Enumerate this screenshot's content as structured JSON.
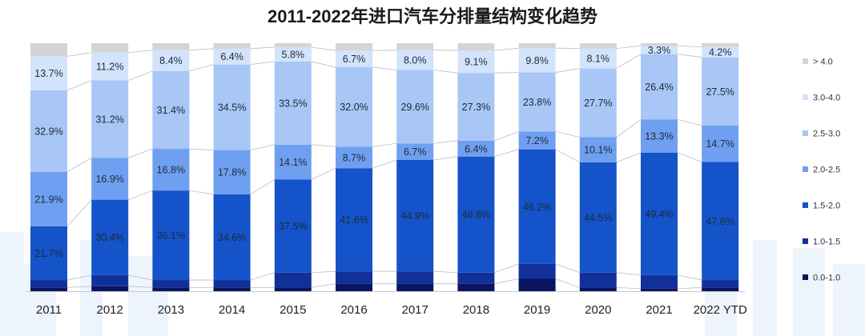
{
  "chart_data": {
    "type": "bar",
    "stacked": true,
    "normalized": true,
    "title": "2011-2022年进口汽车分排量结构变化趋势",
    "categories": [
      "2011",
      "2012",
      "2013",
      "2014",
      "2015",
      "2016",
      "2017",
      "2018",
      "2019",
      "2020",
      "2021",
      "2022 YTD"
    ],
    "ylim": [
      0,
      100
    ],
    "legend_position": "right",
    "series": [
      {
        "name": "0.0-1.0",
        "color": "#0a1560",
        "values": [
          1.5,
          2.0,
          1.5,
          1.5,
          1.5,
          3.0,
          3.0,
          3.0,
          5.0,
          1.5,
          1.0,
          1.5
        ],
        "labels": [
          null,
          null,
          null,
          null,
          null,
          null,
          null,
          null,
          null,
          null,
          null,
          null
        ]
      },
      {
        "name": "1.0-1.5",
        "color": "#12309a",
        "values": [
          3.0,
          4.5,
          3.0,
          3.0,
          6.0,
          5.0,
          5.0,
          4.5,
          6.0,
          6.0,
          5.5,
          3.0
        ],
        "labels": [
          null,
          null,
          null,
          null,
          null,
          null,
          null,
          null,
          null,
          null,
          null,
          null
        ]
      },
      {
        "name": "1.5-2.0",
        "color": "#1453c9",
        "values": [
          21.7,
          30.4,
          36.1,
          34.6,
          37.5,
          41.6,
          44.9,
          46.8,
          46.2,
          44.5,
          49.4,
          47.6
        ],
        "labels": [
          "21.7%",
          "30.4%",
          "36.1%",
          "34.6%",
          "37.5%",
          "41.6%",
          "44.9%",
          "46.8%",
          "46.2%",
          "44.5%",
          "49.4%",
          "47.6%"
        ]
      },
      {
        "name": "2.0-2.5",
        "color": "#6f9ff0",
        "values": [
          21.9,
          16.9,
          16.8,
          17.8,
          14.1,
          8.7,
          6.7,
          6.4,
          7.2,
          10.1,
          13.3,
          14.7
        ],
        "labels": [
          "21.9%",
          "16.9%",
          "16.8%",
          "17.8%",
          "14.1%",
          "8.7%",
          "6.7%",
          "6.4%",
          "7.2%",
          "10.1%",
          "13.3%",
          "14.7%"
        ]
      },
      {
        "name": "2.5-3.0",
        "color": "#a8c6f6",
        "values": [
          32.9,
          31.2,
          31.4,
          34.5,
          33.5,
          32.0,
          29.6,
          27.3,
          23.8,
          27.7,
          26.4,
          27.5
        ],
        "labels": [
          "32.9%",
          "31.2%",
          "31.4%",
          "34.5%",
          "33.5%",
          "32.0%",
          "29.6%",
          "27.3%",
          "23.8%",
          "27.7%",
          "26.4%",
          "27.5%"
        ]
      },
      {
        "name": "3.0-4.0",
        "color": "#d2e3fb",
        "values": [
          13.7,
          11.2,
          8.4,
          6.4,
          5.8,
          6.7,
          8.0,
          9.1,
          9.8,
          8.1,
          3.3,
          4.2
        ],
        "labels": [
          "13.7%",
          "11.2%",
          "8.4%",
          "6.4%",
          "5.8%",
          "6.7%",
          "8.0%",
          "9.1%",
          "9.8%",
          "8.1%",
          "3.3%",
          "4.2%"
        ]
      },
      {
        "name": "> 4.0",
        "color": "#d4d4d4",
        "values": [
          5.3,
          3.8,
          2.8,
          2.2,
          1.6,
          3.0,
          2.8,
          2.9,
          2.0,
          2.1,
          1.1,
          1.5
        ],
        "labels": [
          null,
          null,
          null,
          null,
          null,
          null,
          null,
          null,
          null,
          null,
          null,
          null
        ]
      }
    ]
  }
}
